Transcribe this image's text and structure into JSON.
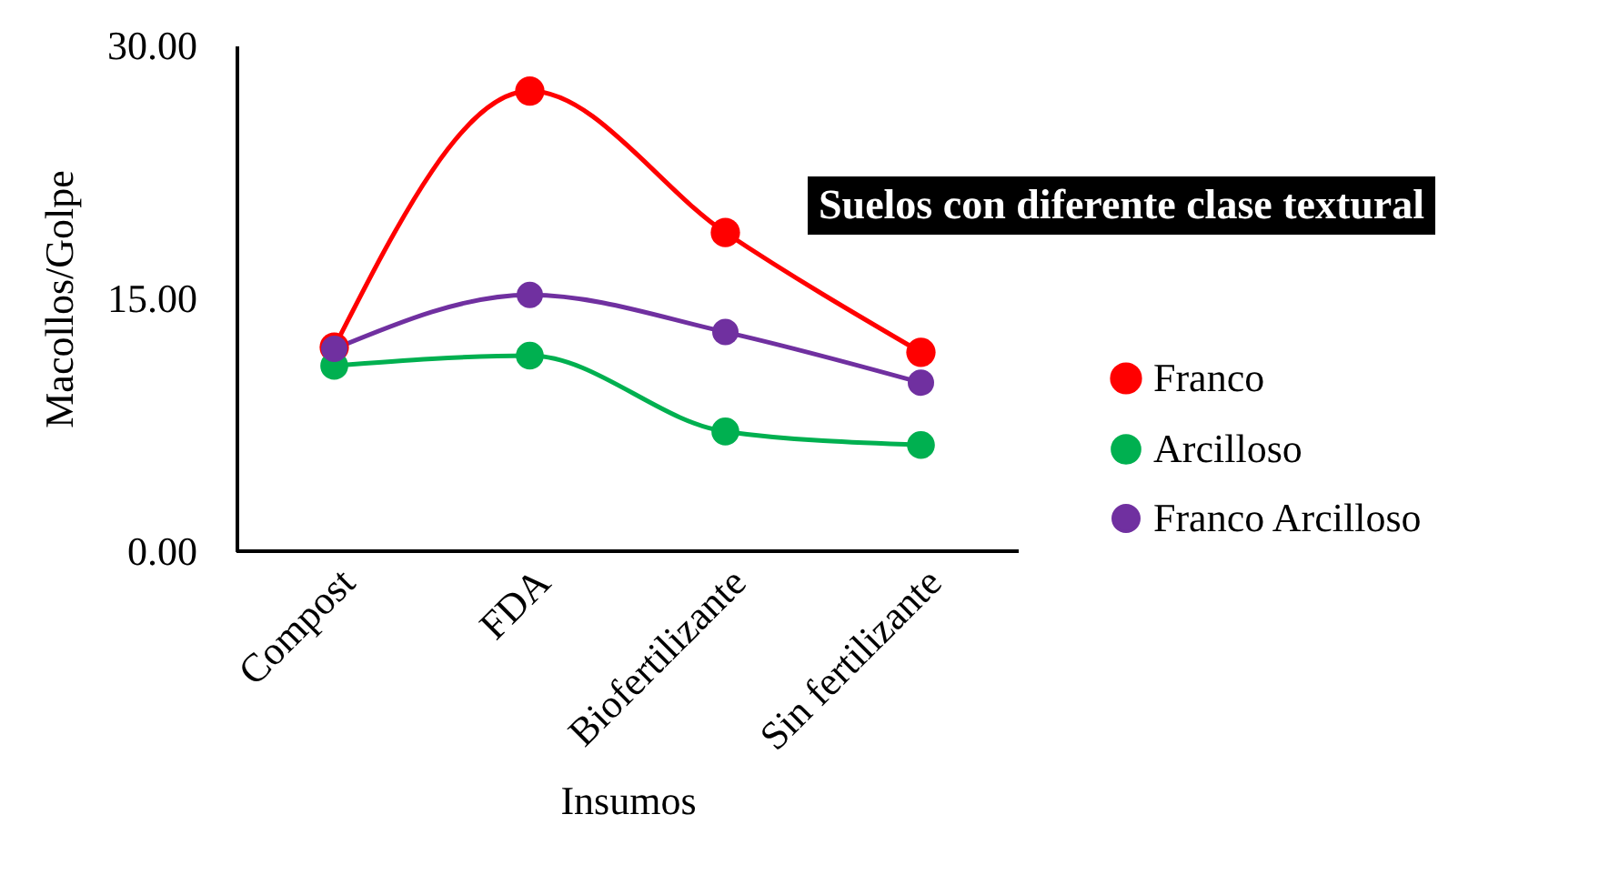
{
  "chart_data": {
    "type": "line",
    "title": "Suelos con diferente clase textural",
    "xlabel": "Insumos",
    "ylabel": "Macollos/Golpe",
    "categories": [
      "Compost",
      "FDA",
      "Biofertilizante",
      "Sin fertilizante"
    ],
    "series": [
      {
        "name": "Franco",
        "color": "#ff0000",
        "values": [
          12.1,
          27.3,
          18.9,
          11.8
        ]
      },
      {
        "name": "Arcilloso",
        "color": "#00b050",
        "values": [
          11.0,
          11.6,
          7.1,
          6.3
        ]
      },
      {
        "name": "Franco Arcilloso",
        "color": "#7030a0",
        "values": [
          12.0,
          15.2,
          13.0,
          10.0
        ]
      }
    ],
    "ylim": [
      0,
      30
    ],
    "yticks": [
      {
        "value": 0,
        "label": "0.00"
      },
      {
        "value": 15,
        "label": "15.00"
      },
      {
        "value": 30,
        "label": "30.00"
      }
    ],
    "grid": false,
    "legend": "right",
    "marker": "circle"
  }
}
